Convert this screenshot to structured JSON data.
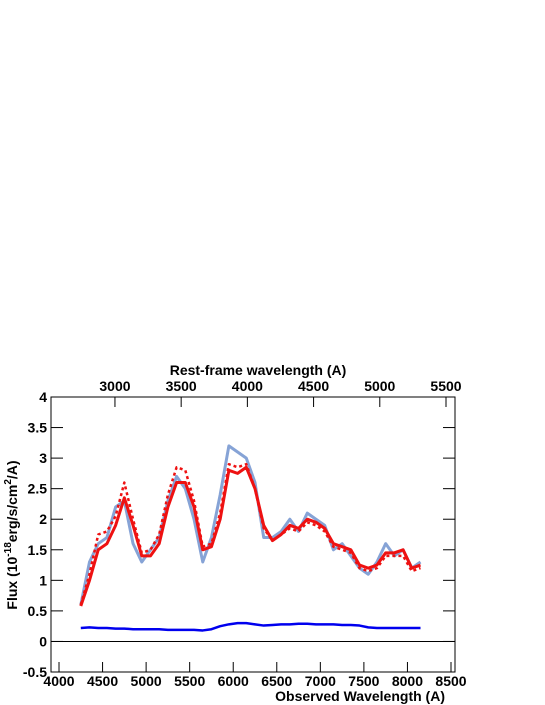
{
  "chart_data": {
    "type": "line",
    "xlabel": "Observed Wavelength (A)",
    "x2label": "Rest-frame wavelength (A)",
    "ylabel_parts": [
      "Flux (10",
      "-18",
      "erg/s/cm",
      "2",
      "/A)"
    ],
    "x": [
      4250,
      4350,
      4450,
      4550,
      4650,
      4750,
      4850,
      4950,
      5050,
      5150,
      5250,
      5350,
      5450,
      5550,
      5650,
      5750,
      5850,
      5950,
      6050,
      6150,
      6250,
      6350,
      6450,
      6550,
      6650,
      6750,
      6850,
      6950,
      7050,
      7150,
      7250,
      7350,
      7450,
      7550,
      7650,
      7750,
      7850,
      7950,
      8050,
      8150
    ],
    "series": [
      {
        "color": "#86a3d6",
        "style": "solid",
        "width": 3,
        "values": [
          0.6,
          1.3,
          1.6,
          1.7,
          2.2,
          2.3,
          1.6,
          1.3,
          1.5,
          1.7,
          2.3,
          2.7,
          2.5,
          2.0,
          1.3,
          1.7,
          2.4,
          3.2,
          3.1,
          3.0,
          2.6,
          1.7,
          1.7,
          1.8,
          2.0,
          1.8,
          2.1,
          2.0,
          1.9,
          1.5,
          1.6,
          1.4,
          1.2,
          1.1,
          1.3,
          1.6,
          1.4,
          1.5,
          1.2,
          1.3
        ]
      },
      {
        "color": "#ee1111",
        "style": "dotted",
        "width": 2.5,
        "values": [
          0.6,
          1.1,
          1.75,
          1.8,
          2.05,
          2.6,
          2.0,
          1.45,
          1.5,
          1.75,
          2.4,
          2.85,
          2.8,
          2.3,
          1.55,
          1.6,
          2.1,
          2.9,
          2.85,
          2.9,
          2.5,
          1.85,
          1.65,
          1.75,
          1.85,
          1.8,
          1.95,
          1.9,
          1.8,
          1.55,
          1.5,
          1.45,
          1.2,
          1.15,
          1.2,
          1.4,
          1.4,
          1.4,
          1.15,
          1.2
        ]
      },
      {
        "color": "#ee1111",
        "style": "solid",
        "width": 3,
        "values": [
          0.58,
          1.0,
          1.5,
          1.6,
          1.9,
          2.35,
          1.9,
          1.4,
          1.4,
          1.6,
          2.2,
          2.6,
          2.6,
          2.2,
          1.5,
          1.55,
          2.0,
          2.8,
          2.75,
          2.85,
          2.5,
          1.9,
          1.65,
          1.75,
          1.9,
          1.85,
          2.0,
          1.95,
          1.85,
          1.6,
          1.55,
          1.5,
          1.25,
          1.2,
          1.25,
          1.45,
          1.45,
          1.5,
          1.2,
          1.25
        ]
      },
      {
        "color": "#0000ee",
        "style": "solid",
        "width": 2.5,
        "values": [
          0.22,
          0.23,
          0.22,
          0.22,
          0.21,
          0.21,
          0.2,
          0.2,
          0.2,
          0.2,
          0.19,
          0.19,
          0.19,
          0.19,
          0.18,
          0.2,
          0.25,
          0.28,
          0.3,
          0.3,
          0.28,
          0.26,
          0.27,
          0.28,
          0.28,
          0.29,
          0.29,
          0.28,
          0.28,
          0.28,
          0.27,
          0.27,
          0.26,
          0.23,
          0.22,
          0.22,
          0.22,
          0.22,
          0.22,
          0.22
        ]
      }
    ],
    "xlim": [
      3908,
      8546
    ],
    "xticks": [
      4000,
      4500,
      5000,
      5500,
      6000,
      6500,
      7000,
      7500,
      8000,
      8500
    ],
    "x2lim": [
      2517,
      5568
    ],
    "x2ticks": [
      3000,
      3500,
      4000,
      4500,
      5000,
      5500
    ],
    "ylim": [
      -0.5,
      4
    ],
    "yticks": [
      -0.5,
      0,
      0.5,
      1,
      1.5,
      2,
      2.5,
      3,
      3.5,
      4
    ],
    "zero_line": true
  }
}
